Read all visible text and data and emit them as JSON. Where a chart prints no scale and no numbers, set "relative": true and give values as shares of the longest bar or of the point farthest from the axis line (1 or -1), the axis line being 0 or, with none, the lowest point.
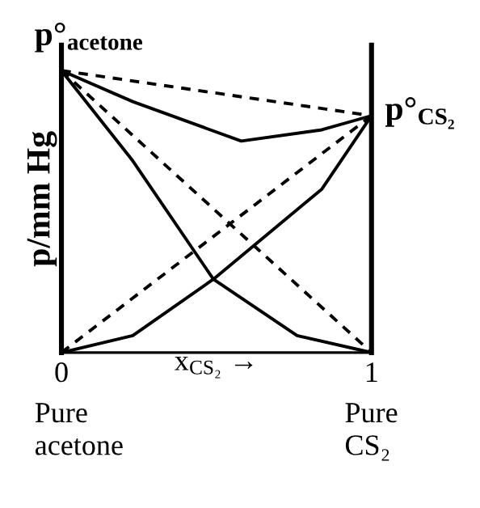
{
  "chart_data": {
    "type": "line",
    "relative": true,
    "ylabel": "p/mm Hg",
    "xlabel": "x$_{CS₂}$ →",
    "xlim": [
      0,
      1
    ],
    "xticks": [
      0,
      1
    ],
    "tick_labels": "x",
    "legend": false,
    "marker": "none",
    "series": [
      {
        "color": "#000000",
        "line_style": "dashed",
        "x": [
          0,
          1
        ],
        "values": [
          1,
          0.84
        ]
      },
      {
        "color": "#000000",
        "line_style": "dashed",
        "x": [
          0,
          1
        ],
        "values": [
          1,
          0
        ]
      },
      {
        "color": "#000000",
        "line_style": "dashed",
        "x": [
          0,
          1
        ],
        "values": [
          0,
          0.84
        ]
      },
      {
        "color": "#000000",
        "line_style": "solid",
        "x": [
          0,
          0.23,
          0.58,
          0.84,
          1
        ],
        "values": [
          1,
          0.89,
          0.75,
          0.79,
          0.84
        ]
      },
      {
        "color": "#000000",
        "line_style": "solid",
        "x": [
          0,
          0.23,
          0.49,
          0.76,
          1
        ],
        "values": [
          1,
          0.68,
          0.26,
          0.06,
          0
        ]
      },
      {
        "color": "#000000",
        "line_style": "solid",
        "x": [
          0,
          0.23,
          0.49,
          0.84,
          1
        ],
        "values": [
          0,
          0.06,
          0.26,
          0.58,
          0.84
        ]
      }
    ],
    "annotations": [
      {
        "text": "p°$_{acetone}$",
        "x": 0,
        "y": 1
      },
      {
        "text": "p°$_{CS₂}$",
        "x": 1,
        "y": 0.84
      },
      "Pure\nacetone",
      "Pure\nCS₂"
    ]
  }
}
